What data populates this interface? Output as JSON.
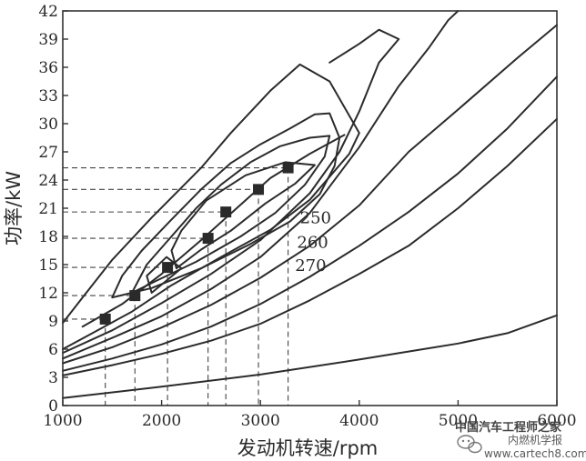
{
  "chart_data": {
    "type": "line",
    "title": "",
    "xlabel": "发动机转速/rpm",
    "ylabel": "功率/kW",
    "xlim": [
      1000,
      6000
    ],
    "ylim": [
      0,
      42
    ],
    "x_ticks": [
      1000,
      2000,
      3000,
      4000,
      5000,
      6000
    ],
    "y_ticks": [
      0,
      3,
      6,
      9,
      12,
      15,
      18,
      21,
      24,
      27,
      30,
      33,
      36,
      39,
      42
    ],
    "grid": false,
    "contour_labels": [
      {
        "text": "250",
        "x": 3400,
        "y": 19.4
      },
      {
        "text": "260",
        "x": 3370,
        "y": 16.8
      },
      {
        "text": "270",
        "x": 3350,
        "y": 14.3
      }
    ],
    "operating_points": [
      {
        "x": 1430,
        "y": 9.2
      },
      {
        "x": 1730,
        "y": 11.7
      },
      {
        "x": 2060,
        "y": 14.7
      },
      {
        "x": 2470,
        "y": 17.8
      },
      {
        "x": 2650,
        "y": 20.6
      },
      {
        "x": 2980,
        "y": 23.0
      },
      {
        "x": 3280,
        "y": 25.3
      }
    ],
    "series": [
      {
        "values": [
          [
            1000,
            0.8
          ],
          [
            2000,
            2.0
          ],
          [
            3000,
            3.3
          ],
          [
            4000,
            4.9
          ],
          [
            5000,
            6.6
          ],
          [
            5500,
            7.7
          ],
          [
            6000,
            9.6
          ]
        ]
      },
      {
        "values": [
          [
            1000,
            3.2
          ],
          [
            1500,
            4.3
          ],
          [
            2000,
            5.5
          ],
          [
            2500,
            6.9
          ],
          [
            3000,
            8.7
          ],
          [
            3500,
            11.2
          ],
          [
            4000,
            14.0
          ],
          [
            4500,
            17.0
          ],
          [
            5000,
            21.0
          ],
          [
            5500,
            25.5
          ],
          [
            6000,
            30.5
          ]
        ]
      },
      {
        "values": [
          [
            1000,
            3.7
          ],
          [
            1500,
            5.0
          ],
          [
            2000,
            6.5
          ],
          [
            2500,
            8.4
          ],
          [
            3000,
            10.8
          ],
          [
            3500,
            13.7
          ],
          [
            4000,
            17.0
          ],
          [
            4500,
            20.6
          ],
          [
            5000,
            24.7
          ],
          [
            5500,
            29.5
          ],
          [
            6000,
            35.0
          ]
        ]
      },
      {
        "values": [
          [
            1000,
            4.5
          ],
          [
            1500,
            6.2
          ],
          [
            2000,
            8.3
          ],
          [
            2500,
            10.7
          ],
          [
            3000,
            13.6
          ],
          [
            3500,
            17.0
          ],
          [
            4000,
            21.3
          ],
          [
            4500,
            27.0
          ],
          [
            5000,
            31.5
          ],
          [
            5600,
            37.0
          ],
          [
            6000,
            40.5
          ]
        ]
      },
      {
        "values": [
          [
            1000,
            5.0
          ],
          [
            1500,
            7.2
          ],
          [
            2000,
            9.5
          ],
          [
            2500,
            12.4
          ],
          [
            3000,
            15.8
          ],
          [
            3500,
            20.5
          ],
          [
            4000,
            27.5
          ],
          [
            4400,
            34.0
          ],
          [
            4700,
            38.0
          ],
          [
            4900,
            41.0
          ],
          [
            5000,
            42.0
          ]
        ]
      },
      {
        "values": [
          [
            1000,
            5.6
          ],
          [
            1500,
            8.0
          ],
          [
            2000,
            10.9
          ],
          [
            2500,
            14.0
          ],
          [
            3000,
            17.6
          ],
          [
            3500,
            22.6
          ],
          [
            3800,
            27.0
          ],
          [
            4000,
            31.3
          ],
          [
            4200,
            36.5
          ],
          [
            4400,
            39.0
          ],
          [
            4200,
            40.0
          ],
          [
            4000,
            38.5
          ],
          [
            3700,
            36.5
          ]
        ]
      },
      {
        "values": [
          [
            1000,
            6.0
          ],
          [
            1300,
            7.7
          ],
          [
            1700,
            10.0
          ],
          [
            2100,
            12.8
          ],
          [
            2600,
            15.8
          ],
          [
            3100,
            18.7
          ],
          [
            3500,
            21.9
          ],
          [
            3900,
            26.8
          ],
          [
            4000,
            29.0
          ],
          [
            3700,
            34.5
          ],
          [
            3400,
            36.3
          ],
          [
            3100,
            33.5
          ],
          [
            2700,
            29.0
          ],
          [
            2400,
            25.3
          ],
          [
            1900,
            20.0
          ],
          [
            1500,
            15.5
          ],
          [
            1200,
            11.5
          ],
          [
            1000,
            8.8
          ]
        ]
      },
      {
        "values": [
          [
            1500,
            11.5
          ],
          [
            1900,
            12.5
          ],
          [
            2400,
            14.6
          ],
          [
            2900,
            17.2
          ],
          [
            3300,
            19.6
          ],
          [
            3600,
            22.5
          ],
          [
            3750,
            25.5
          ],
          [
            3800,
            28.5
          ],
          [
            3700,
            31.1
          ],
          [
            3550,
            31.0
          ],
          [
            3300,
            29.5
          ],
          [
            3000,
            27.8
          ],
          [
            2700,
            25.8
          ],
          [
            2400,
            23.0
          ],
          [
            2100,
            19.8
          ],
          [
            1800,
            16.5
          ],
          [
            1600,
            13.8
          ],
          [
            1500,
            11.5
          ]
        ]
      },
      {
        "values": [
          [
            1700,
            12.0
          ],
          [
            1950,
            13.3
          ],
          [
            2350,
            15.3
          ],
          [
            2800,
            18.0
          ],
          [
            3150,
            20.5
          ],
          [
            3450,
            23.5
          ],
          [
            3650,
            26.5
          ],
          [
            3700,
            28.7
          ],
          [
            3500,
            28.5
          ],
          [
            3200,
            27.6
          ],
          [
            2900,
            25.9
          ],
          [
            2600,
            23.5
          ],
          [
            2350,
            21.0
          ],
          [
            2100,
            18.0
          ],
          [
            1850,
            15.0
          ],
          [
            1700,
            12.0
          ]
        ]
      },
      {
        "values": [
          [
            2150,
            14.6
          ],
          [
            2400,
            16.6
          ],
          [
            2700,
            18.6
          ],
          [
            3050,
            21.5
          ],
          [
            3350,
            23.6
          ],
          [
            3550,
            25.6
          ],
          [
            3250,
            25.9
          ],
          [
            2850,
            24.5
          ],
          [
            2450,
            21.8
          ],
          [
            2200,
            18.6
          ],
          [
            2100,
            16.5
          ],
          [
            2150,
            14.6
          ]
        ]
      },
      {
        "values": [
          [
            1900,
            12.0
          ],
          [
            2200,
            14.6
          ],
          [
            2050,
            15.8
          ],
          [
            1850,
            13.8
          ],
          [
            1900,
            12.0
          ]
        ]
      },
      {
        "values": [
          [
            1200,
            8.4
          ],
          [
            1600,
            10.8
          ],
          [
            2000,
            14.0
          ],
          [
            2400,
            17.6
          ],
          [
            2750,
            20.9
          ],
          [
            3100,
            24.2
          ],
          [
            3500,
            26.8
          ],
          [
            3850,
            28.8
          ]
        ]
      }
    ],
    "guide_lines": "vertical and horizontal dashed lines from each operating point to the axes"
  },
  "watermark": {
    "line1": "中国汽车工程师之家",
    "line2": "内燃机学报",
    "url": "www.cartech8.com",
    "icon": "wechat-icon"
  }
}
